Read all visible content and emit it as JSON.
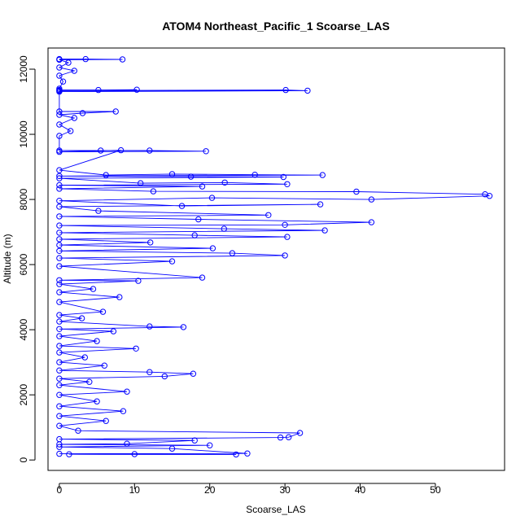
{
  "chart_data": {
    "type": "line",
    "title": "ATOM4 Northeast_Pacific_1 Scoarse_LAS",
    "xlabel": "Scoarse_LAS",
    "ylabel": "Altitude (m)",
    "xlim": [
      -1.5,
      59.2
    ],
    "ylim": [
      -320,
      12650
    ],
    "xticks": [
      0,
      10,
      20,
      30,
      40,
      50
    ],
    "yticks": [
      0,
      2000,
      4000,
      6000,
      8000,
      10000,
      12000
    ],
    "markers": "open-circle",
    "grid": false,
    "legend": "none",
    "colors": {
      "series": "#0000ff",
      "axis": "#000000",
      "background": "#ffffff"
    },
    "series": [
      {
        "points": [
          [
            0,
            12310
          ],
          [
            3.5,
            12310
          ],
          [
            8.4,
            12300
          ],
          [
            0,
            12290
          ],
          [
            1.2,
            12200
          ],
          [
            0,
            12050
          ],
          [
            2.0,
            11950
          ],
          [
            0,
            11800
          ],
          [
            0.5,
            11620
          ],
          [
            0,
            11400
          ],
          [
            0,
            11360
          ],
          [
            5.2,
            11360
          ],
          [
            10.3,
            11370
          ],
          [
            0,
            11340
          ],
          [
            30.1,
            11360
          ],
          [
            33.0,
            11340
          ],
          [
            0,
            11310
          ],
          [
            0,
            10700
          ],
          [
            7.5,
            10700
          ],
          [
            3.1,
            10650
          ],
          [
            0,
            10600
          ],
          [
            2.0,
            10500
          ],
          [
            0,
            10300
          ],
          [
            1.5,
            10100
          ],
          [
            0,
            9950
          ],
          [
            0,
            9500
          ],
          [
            5.5,
            9500
          ],
          [
            12.0,
            9500
          ],
          [
            19.5,
            9480
          ],
          [
            0,
            9460
          ],
          [
            8.2,
            9510
          ],
          [
            0,
            8900
          ],
          [
            6.2,
            8750
          ],
          [
            15.0,
            8780
          ],
          [
            26.0,
            8760
          ],
          [
            35.0,
            8750
          ],
          [
            0,
            8720
          ],
          [
            17.5,
            8700
          ],
          [
            29.8,
            8690
          ],
          [
            0,
            8650
          ],
          [
            10.8,
            8500
          ],
          [
            22.0,
            8520
          ],
          [
            30.3,
            8470
          ],
          [
            0,
            8440
          ],
          [
            19.0,
            8400
          ],
          [
            0,
            8330
          ],
          [
            12.5,
            8250
          ],
          [
            39.5,
            8240
          ],
          [
            56.6,
            8160
          ],
          [
            57.2,
            8110
          ],
          [
            41.5,
            8000
          ],
          [
            20.3,
            8050
          ],
          [
            0,
            7960
          ],
          [
            16.3,
            7800
          ],
          [
            34.7,
            7850
          ],
          [
            0,
            7780
          ],
          [
            5.2,
            7650
          ],
          [
            27.8,
            7520
          ],
          [
            0,
            7480
          ],
          [
            18.5,
            7390
          ],
          [
            41.5,
            7300
          ],
          [
            30.0,
            7220
          ],
          [
            0,
            7200
          ],
          [
            21.9,
            7100
          ],
          [
            35.3,
            7050
          ],
          [
            0,
            6980
          ],
          [
            18.0,
            6900
          ],
          [
            30.3,
            6850
          ],
          [
            0,
            6780
          ],
          [
            12.1,
            6680
          ],
          [
            0,
            6600
          ],
          [
            20.4,
            6500
          ],
          [
            0,
            6420
          ],
          [
            23.0,
            6350
          ],
          [
            30.0,
            6280
          ],
          [
            0,
            6200
          ],
          [
            15.0,
            6100
          ],
          [
            0,
            5950
          ],
          [
            19.0,
            5600
          ],
          [
            0,
            5520
          ],
          [
            10.5,
            5500
          ],
          [
            0,
            5400
          ],
          [
            4.5,
            5250
          ],
          [
            0,
            5150
          ],
          [
            8.0,
            5000
          ],
          [
            0,
            4850
          ],
          [
            5.8,
            4550
          ],
          [
            0,
            4450
          ],
          [
            3.0,
            4350
          ],
          [
            0,
            4250
          ],
          [
            12.0,
            4100
          ],
          [
            16.5,
            4080
          ],
          [
            0,
            4020
          ],
          [
            7.2,
            3950
          ],
          [
            0,
            3800
          ],
          [
            5.0,
            3650
          ],
          [
            0,
            3500
          ],
          [
            10.2,
            3420
          ],
          [
            0,
            3300
          ],
          [
            3.4,
            3150
          ],
          [
            0,
            3000
          ],
          [
            6.0,
            2900
          ],
          [
            0,
            2750
          ],
          [
            12.0,
            2700
          ],
          [
            17.8,
            2650
          ],
          [
            14.0,
            2570
          ],
          [
            0,
            2500
          ],
          [
            4.0,
            2400
          ],
          [
            0,
            2300
          ],
          [
            9.0,
            2100
          ],
          [
            0,
            2000
          ],
          [
            5.0,
            1800
          ],
          [
            0,
            1650
          ],
          [
            8.5,
            1500
          ],
          [
            0,
            1350
          ],
          [
            6.2,
            1200
          ],
          [
            0,
            1050
          ],
          [
            2.5,
            900
          ],
          [
            32.0,
            830
          ],
          [
            30.5,
            700
          ],
          [
            29.4,
            690
          ],
          [
            0,
            640
          ],
          [
            18.0,
            600
          ],
          [
            9.0,
            500
          ],
          [
            0,
            480
          ],
          [
            20.0,
            450
          ],
          [
            0,
            400
          ],
          [
            15.0,
            350
          ],
          [
            25.0,
            200
          ],
          [
            0,
            190
          ],
          [
            10.0,
            180
          ],
          [
            23.5,
            170
          ],
          [
            1.3,
            175
          ]
        ]
      }
    ]
  }
}
